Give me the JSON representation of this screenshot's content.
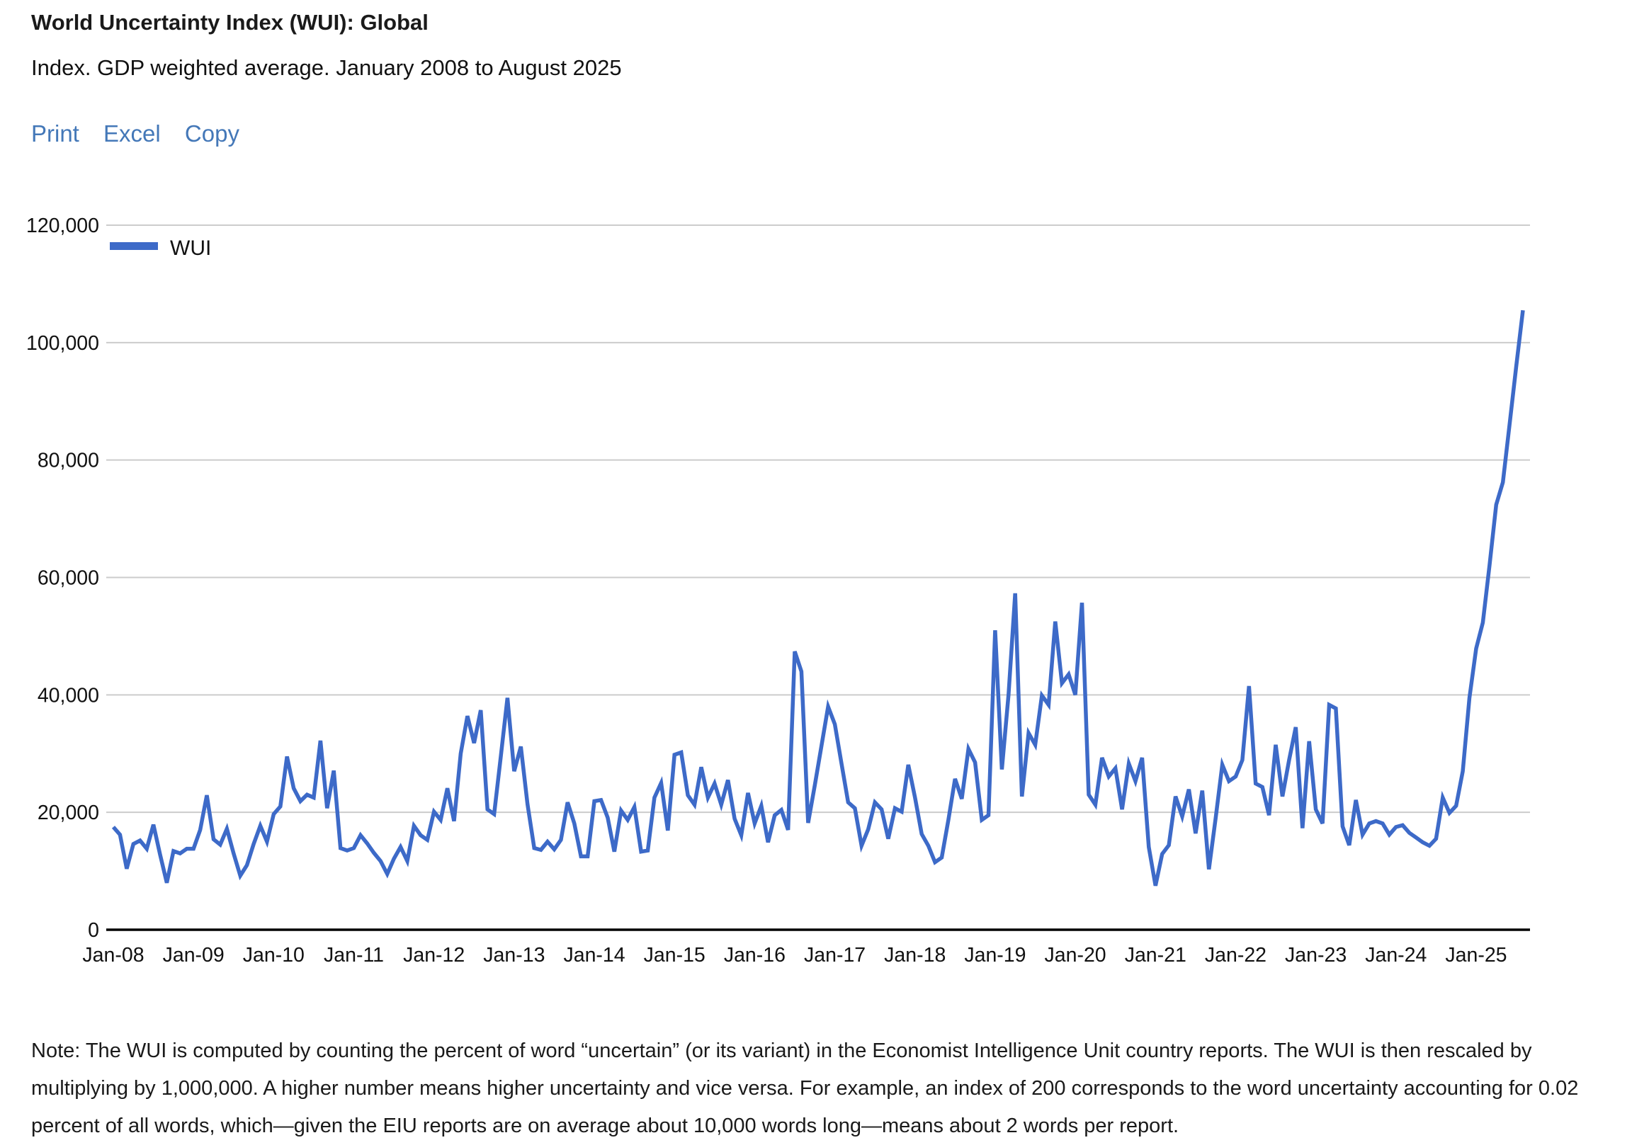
{
  "header": {
    "title": "World Uncertainty Index (WUI): Global",
    "subtitle": "Index. GDP weighted average. January 2008 to August 2025"
  },
  "toolbar": {
    "links": [
      "Print",
      "Excel",
      "Copy"
    ]
  },
  "chart": {
    "legend_label": "WUI",
    "line_color": "#3d6ac8",
    "grid_color": "#cccccc",
    "axis_color": "#000000",
    "label_color": "#111111"
  },
  "chart_data": {
    "type": "line",
    "title": "World Uncertainty Index (WUI): Global",
    "xlabel": "",
    "ylabel": "",
    "x_start": "Jan-2008",
    "x_end": "Aug-2025",
    "x_tick_labels": [
      "Jan-08",
      "Jan-09",
      "Jan-10",
      "Jan-11",
      "Jan-12",
      "Jan-13",
      "Jan-14",
      "Jan-15",
      "Jan-16",
      "Jan-17",
      "Jan-18",
      "Jan-19",
      "Jan-20",
      "Jan-21",
      "Jan-22",
      "Jan-23",
      "Jan-24",
      "Jan-25"
    ],
    "y_ticks": [
      0,
      20000,
      40000,
      60000,
      80000,
      100000,
      120000
    ],
    "ylim": [
      0,
      120000
    ],
    "grid": "horizontal",
    "legend_position": "top-left",
    "series": [
      {
        "name": "WUI",
        "values": [
          17500,
          16200,
          10400,
          14600,
          15200,
          13800,
          17900,
          12800,
          8000,
          13400,
          13000,
          13800,
          13800,
          17000,
          22900,
          15400,
          14500,
          17200,
          13000,
          9200,
          11000,
          14600,
          17700,
          15000,
          19700,
          21000,
          29500,
          24100,
          21900,
          23000,
          22500,
          32200,
          20700,
          27100,
          13900,
          13500,
          13900,
          16100,
          14700,
          13100,
          11700,
          9500,
          12100,
          14100,
          11700,
          17700,
          16100,
          15300,
          20100,
          18700,
          24100,
          18500,
          30000,
          36400,
          31800,
          37400,
          20500,
          19700,
          29500,
          39500,
          27000,
          31200,
          21400,
          13900,
          13600,
          15000,
          13700,
          15300,
          21700,
          18100,
          12500,
          12500,
          21900,
          22100,
          19100,
          13300,
          20300,
          18700,
          20900,
          13300,
          13500,
          22500,
          25000,
          16900,
          29800,
          30200,
          22900,
          21300,
          27700,
          22500,
          24900,
          21300,
          25500,
          18900,
          16100,
          23300,
          18100,
          21100,
          14900,
          19500,
          20400,
          17000,
          47400,
          44000,
          18200,
          24600,
          31300,
          38000,
          35000,
          28300,
          21700,
          20700,
          14300,
          17100,
          21700,
          20500,
          15500,
          20700,
          20100,
          28100,
          22500,
          16300,
          14300,
          11500,
          12300,
          18700,
          25700,
          22300,
          30800,
          28500,
          18700,
          19500,
          51000,
          27300,
          40000,
          57300,
          22700,
          33500,
          31500,
          39900,
          38300,
          52500,
          42000,
          43500,
          40000,
          55700,
          23000,
          21300,
          29300,
          26100,
          27500,
          20500,
          28300,
          25300,
          29300,
          14100,
          7500,
          12900,
          14400,
          22700,
          19300,
          23900,
          16400,
          23700,
          10300,
          19000,
          28100,
          25300,
          26100,
          28900,
          41500,
          24900,
          24300,
          19500,
          31500,
          22700,
          28900,
          34500,
          17300,
          32100,
          20500,
          18100,
          38300,
          37700,
          17600,
          14400,
          22100,
          16200,
          18100,
          18500,
          18100,
          16200,
          17500,
          17800,
          16500,
          15700,
          14900,
          14300,
          15500,
          22500,
          19900,
          21100,
          27000,
          39500,
          47900,
          52300,
          62000,
          72400,
          76200,
          86000,
          96000,
          105500
        ]
      }
    ]
  },
  "note": "Note: The WUI is computed by counting the percent of word “uncertain” (or its variant) in the Economist Intelligence Unit country reports. The WUI is then rescaled by multiplying by 1,000,000. A higher number means higher uncertainty and vice versa. For example, an index of 200 corresponds to the word uncertainty accounting for 0.02 percent of all words, which—given the EIU reports are on average about 10,000 words long—means about 2 words per report."
}
